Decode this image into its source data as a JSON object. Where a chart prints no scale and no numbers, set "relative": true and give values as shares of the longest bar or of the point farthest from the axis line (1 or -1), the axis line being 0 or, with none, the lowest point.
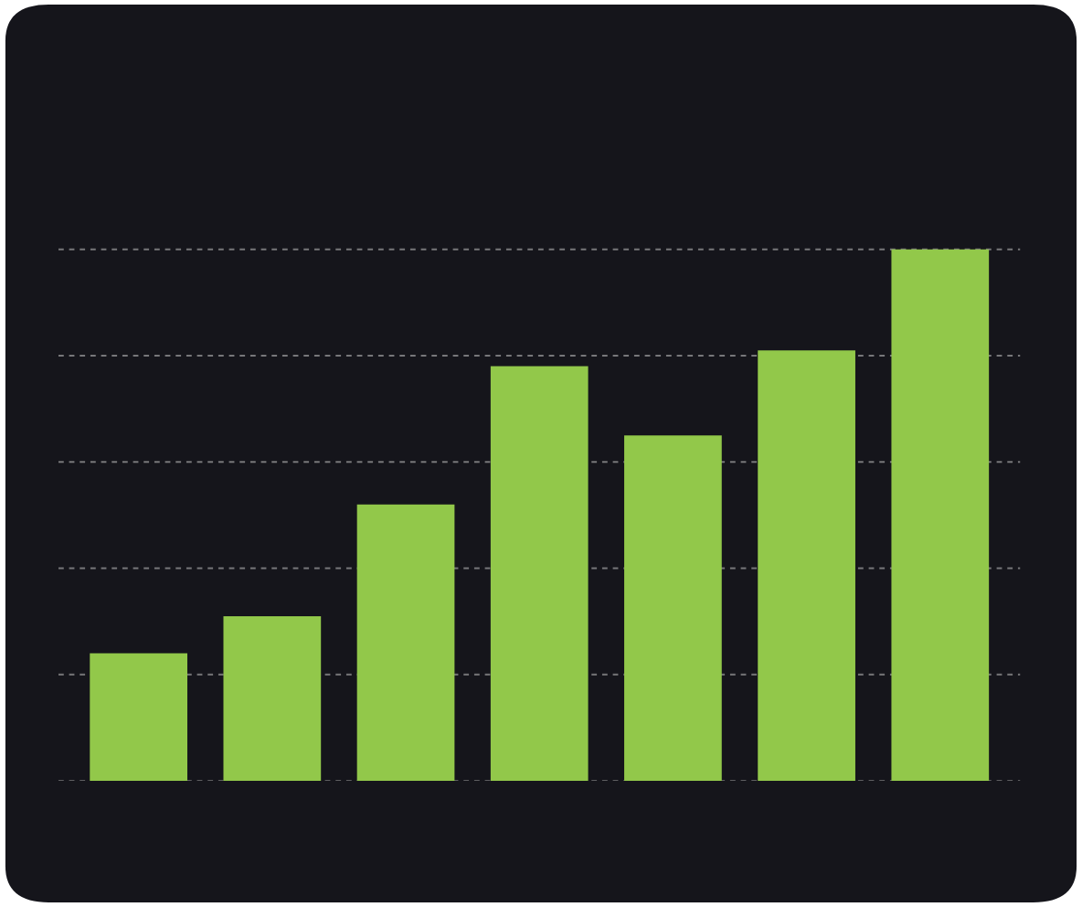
{
  "chart_data": {
    "type": "bar",
    "relative": true,
    "categories": [
      null,
      null,
      null,
      null,
      null,
      null,
      null
    ],
    "values": [
      0.24,
      0.31,
      0.52,
      0.78,
      0.65,
      0.81,
      1
    ],
    "color": "#92c84a",
    "grid": "y"
  }
}
